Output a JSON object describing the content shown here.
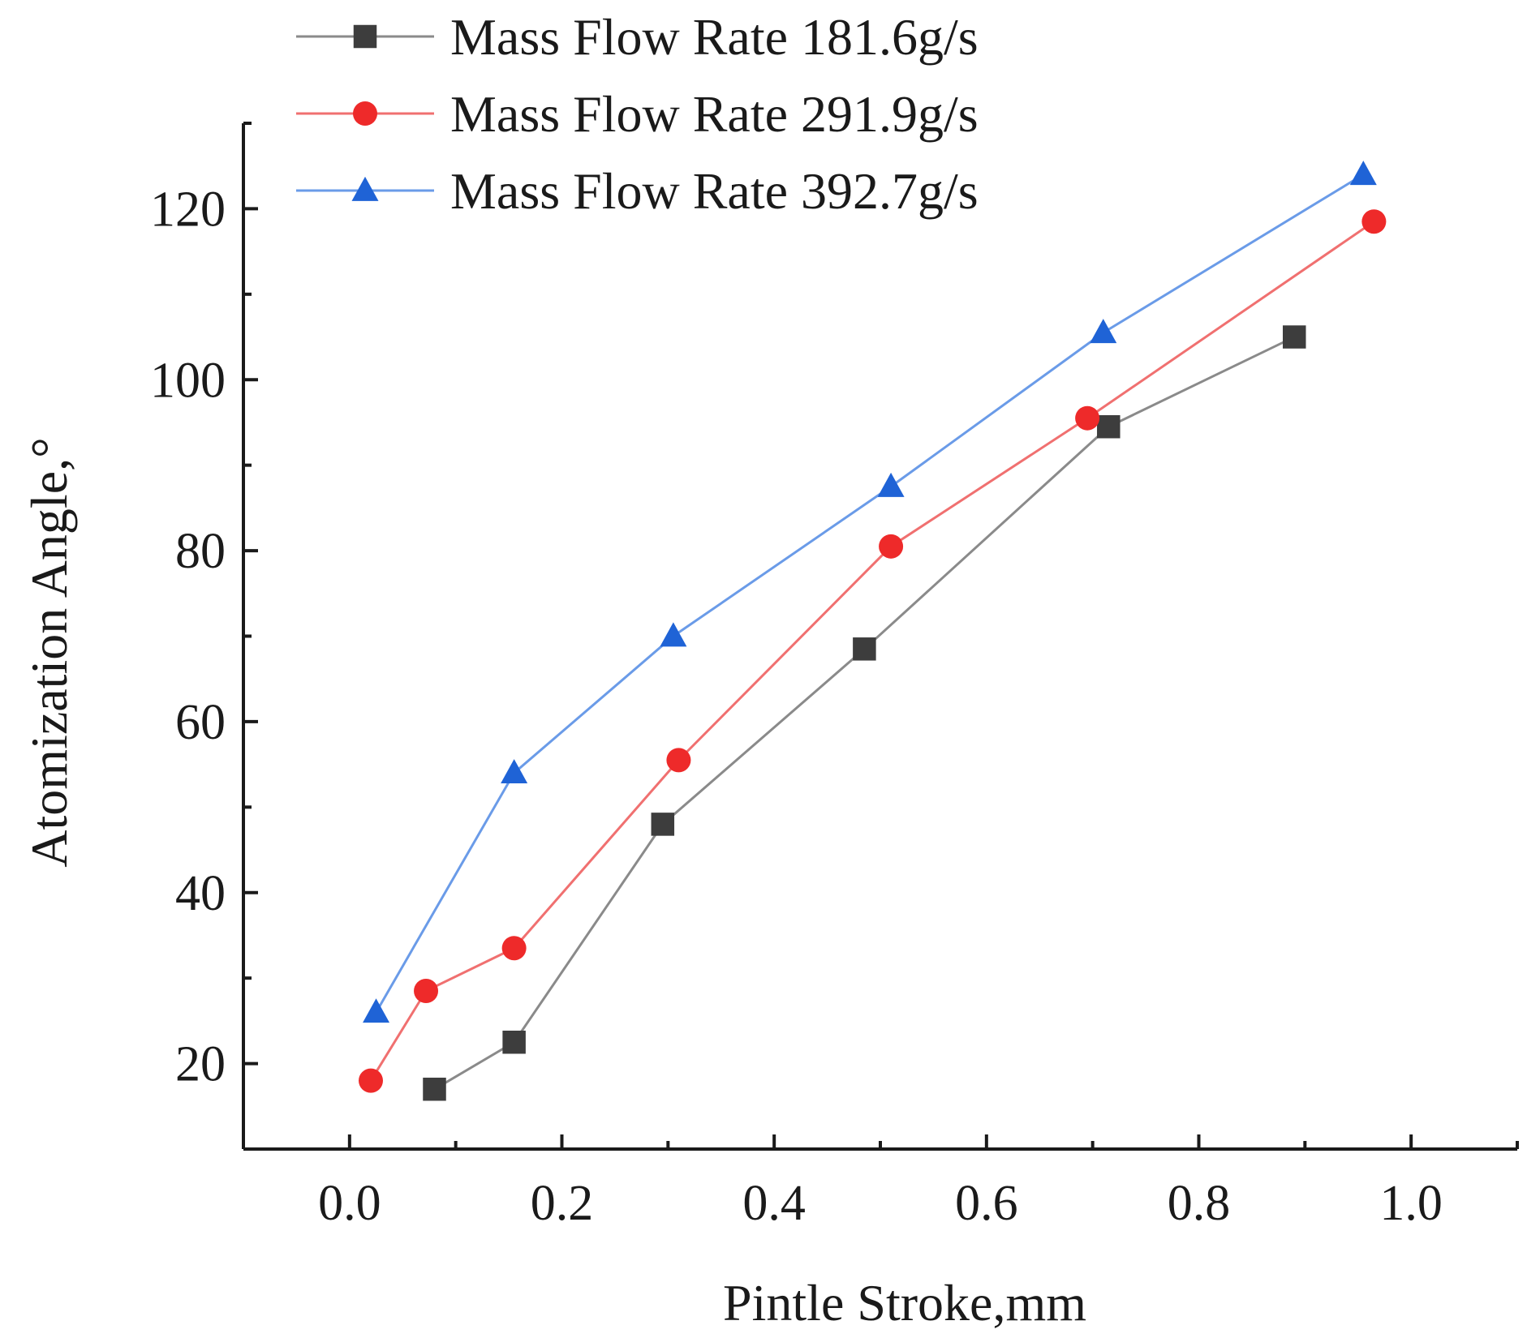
{
  "chart_data": {
    "type": "line",
    "title": "",
    "xlabel": "Pintle Stroke,mm",
    "ylabel": "Atomization Angle,°",
    "xlim": [
      -0.1,
      1.1
    ],
    "ylim": [
      10,
      130
    ],
    "xticks": [
      0.0,
      0.2,
      0.4,
      0.6,
      0.8,
      1.0
    ],
    "xtick_labels": [
      "0.0",
      "0.2",
      "0.4",
      "0.6",
      "0.8",
      "1.0"
    ],
    "yticks": [
      20,
      40,
      60,
      80,
      100,
      120
    ],
    "ytick_labels": [
      "20",
      "40",
      "60",
      "80",
      "100",
      "120"
    ],
    "grid": false,
    "legend_position": "top-left",
    "series": [
      {
        "name": "Mass Flow Rate 181.6g/s",
        "marker": "square",
        "line_color": "#8a8a8a",
        "marker_color": "#3d3d3d",
        "x": [
          0.08,
          0.155,
          0.295,
          0.485,
          0.715,
          0.89
        ],
        "y": [
          17,
          22.5,
          48,
          68.5,
          94.5,
          105
        ]
      },
      {
        "name": "Mass Flow Rate 291.9g/s",
        "marker": "circle",
        "line_color": "#f07070",
        "marker_color": "#ee2a2a",
        "x": [
          0.02,
          0.072,
          0.155,
          0.31,
          0.51,
          0.695,
          0.965
        ],
        "y": [
          18,
          28.5,
          33.5,
          55.5,
          80.5,
          95.5,
          118.5
        ]
      },
      {
        "name": "Mass Flow Rate 392.7g/s",
        "marker": "triangle",
        "line_color": "#6a9be8",
        "marker_color": "#1f63d6",
        "x": [
          0.025,
          0.155,
          0.305,
          0.51,
          0.71,
          0.955
        ],
        "y": [
          26,
          54,
          70,
          87.5,
          105.5,
          124
        ]
      }
    ]
  }
}
